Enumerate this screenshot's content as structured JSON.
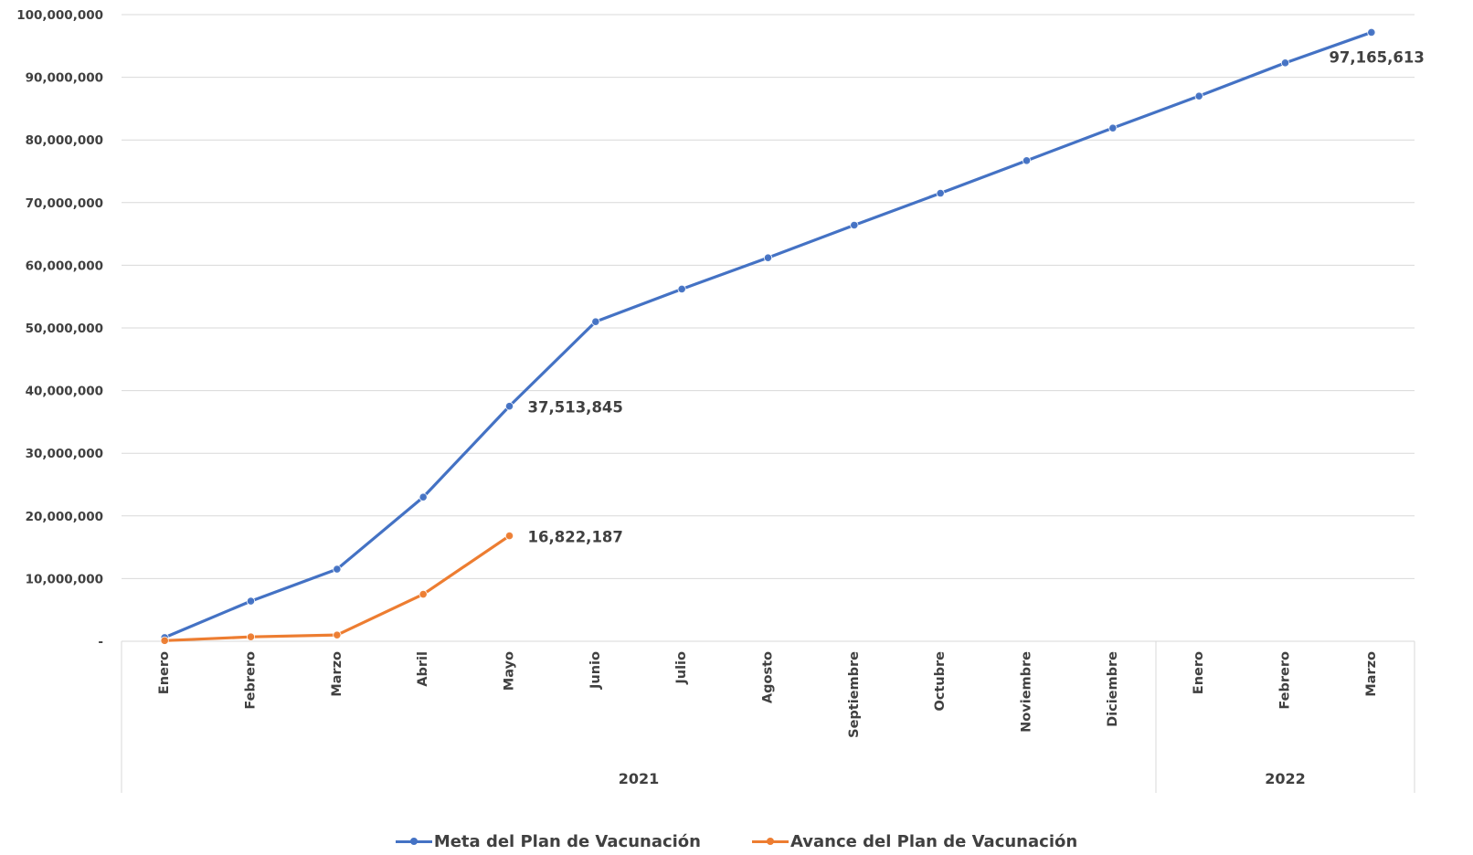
{
  "chart_data": {
    "type": "line",
    "categories": [
      "Enero",
      "Febrero",
      "Marzo",
      "Abril",
      "Mayo",
      "Junio",
      "Julio",
      "Agosto",
      "Septiembre",
      "Octubre",
      "Noviembre",
      "Diciembre",
      "Enero",
      "Febrero",
      "Marzo"
    ],
    "category_groups": [
      {
        "label": "2021",
        "count": 12
      },
      {
        "label": "2022",
        "count": 3
      }
    ],
    "series": [
      {
        "name": "Meta del Plan de Vacunación",
        "color": "#4472c4",
        "values": [
          600000,
          6400000,
          11500000,
          23000000,
          37513845,
          51000000,
          56200000,
          61200000,
          66400000,
          71500000,
          76700000,
          81900000,
          87000000,
          92300000,
          97165613
        ]
      },
      {
        "name": "Avance del Plan de Vacunación",
        "color": "#ed7d31",
        "values": [
          100000,
          700000,
          1000000,
          7500000,
          16822187,
          null,
          null,
          null,
          null,
          null,
          null,
          null,
          null,
          null,
          null
        ]
      }
    ],
    "data_labels": [
      {
        "series": 0,
        "index": 4,
        "text": "37,513,845"
      },
      {
        "series": 0,
        "index": 14,
        "text": "97,165,613"
      },
      {
        "series": 1,
        "index": 4,
        "text": "16,822,187"
      }
    ],
    "ylim": [
      0,
      100000000
    ],
    "yticks": [
      {
        "value": 0,
        "label": "-"
      },
      {
        "value": 10000000,
        "label": "10,000,000"
      },
      {
        "value": 20000000,
        "label": "20,000,000"
      },
      {
        "value": 30000000,
        "label": "30,000,000"
      },
      {
        "value": 40000000,
        "label": "40,000,000"
      },
      {
        "value": 50000000,
        "label": "50,000,000"
      },
      {
        "value": 60000000,
        "label": "60,000,000"
      },
      {
        "value": 70000000,
        "label": "70,000,000"
      },
      {
        "value": 80000000,
        "label": "80,000,000"
      },
      {
        "value": 90000000,
        "label": "90,000,000"
      },
      {
        "value": 100000000,
        "label": "100,000,000"
      }
    ],
    "grid": true,
    "legend_position": "bottom"
  }
}
